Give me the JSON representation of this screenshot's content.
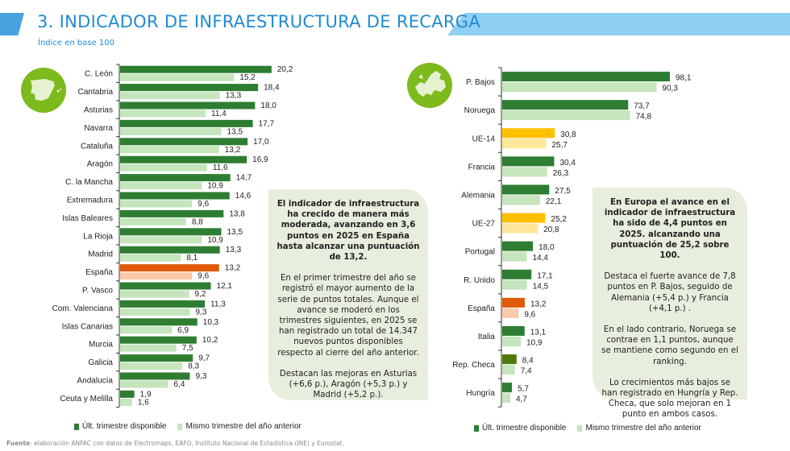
{
  "header": {
    "title": "3. INDICADOR DE INFRAESTRUCTURA DE RECARGA",
    "subtitle": "Índice en base 100"
  },
  "colors": {
    "current": "#2e7d32",
    "previous": "#c5e5bd",
    "spain_current": "#e05a0a",
    "spain_previous": "#fbc9aa",
    "eu_current": "#ffc000",
    "eu_previous": "#ffe699",
    "czech_current": "#4f7a0a",
    "box": "#e8eedd",
    "title": "#1f8bd3"
  },
  "chart_data": [
    {
      "type": "bar",
      "orientation": "horizontal",
      "icon": "spain-map-icon",
      "categories": [
        "C. León",
        "Cantabria",
        "Asturias",
        "Navarra",
        "Cataluña",
        "Aragón",
        "C. la Mancha",
        "Extremadura",
        "Islas Baleares",
        "La Rioja",
        "Madrid",
        "España",
        "P. Vasco",
        "Com. Valenciana",
        "Islas Canarias",
        "Murcia",
        "Galicia",
        "Andalucía",
        "Ceuta y Melilla"
      ],
      "series": [
        {
          "name": "Últ. trimestre disponible",
          "values": [
            20.2,
            18.4,
            18.0,
            17.7,
            17.0,
            16.9,
            14.7,
            14.6,
            13.8,
            13.5,
            13.3,
            13.2,
            12.1,
            11.3,
            10.3,
            10.2,
            9.7,
            9.3,
            1.9
          ],
          "labels": [
            "20,2",
            "18,4",
            "18,0",
            "17,7",
            "17,0",
            "16,9",
            "14,7",
            "14,6",
            "13,8",
            "13,5",
            "13,3",
            "13,2",
            "12,1",
            "11,3",
            "10,3",
            "10,2",
            "9,7",
            "9,3",
            "1,9"
          ]
        },
        {
          "name": "Mismo trimestre del año anterior",
          "values": [
            15.2,
            13.3,
            11.4,
            13.5,
            13.2,
            11.6,
            10.9,
            9.6,
            8.8,
            10.9,
            8.1,
            9.6,
            9.2,
            9.3,
            6.9,
            7.5,
            8.3,
            6.4,
            1.6
          ],
          "labels": [
            "15,2",
            "13,3",
            "11,4",
            "13,5",
            "13,2",
            "11,6",
            "10,9",
            "9,6",
            "8,8",
            "10,9",
            "8,1",
            "9,6",
            "9,2",
            "9,3",
            "6,9",
            "7,5",
            "8,3",
            "6,4",
            "1,6"
          ]
        }
      ],
      "highlight": {
        "España": "spain"
      },
      "xlim": [
        0,
        22
      ],
      "grid": false,
      "legend": "bottom"
    },
    {
      "type": "bar",
      "orientation": "horizontal",
      "icon": "europe-map-icon",
      "categories": [
        "P. Bajos",
        "Noruega",
        "UE-14",
        "Francia",
        "Alemania",
        "UE-27",
        "Portugal",
        "R. Unido",
        "España",
        "Italia",
        "Rep. Checa",
        "Hungría"
      ],
      "series": [
        {
          "name": "Últ. trimestre disponible",
          "values": [
            98.1,
            73.7,
            30.8,
            30.4,
            27.5,
            25.2,
            18.0,
            17.1,
            13.2,
            13.1,
            8.4,
            5.7
          ],
          "labels": [
            "98,1",
            "73,7",
            "30,8",
            "30,4",
            "27,5",
            "25,2",
            "18,0",
            "17,1",
            "13,2",
            "13,1",
            "8,4",
            "5,7"
          ]
        },
        {
          "name": "Mismo trimestre del año anterior",
          "values": [
            90.3,
            74.8,
            25.7,
            26.3,
            22.1,
            20.8,
            14.4,
            14.5,
            9.6,
            10.9,
            7.4,
            4.7
          ],
          "labels": [
            "90,3",
            "74,8",
            "25,7",
            "26,3",
            "22,1",
            "20,8",
            "14,4",
            "14,5",
            "9,6",
            "10,9",
            "7,4",
            "4,7"
          ]
        }
      ],
      "highlight": {
        "UE-14": "eu",
        "UE-27": "eu",
        "España": "spain",
        "Rep. Checa": "czech"
      },
      "xlim": [
        0,
        110
      ],
      "grid": false,
      "legend": "bottom"
    }
  ],
  "spain_box": {
    "bold": "El indicador de infraestructura ha crecido de manera más moderada, avanzando en 3,6 puntos en 2025 en España hasta alcanzar una puntuación de 13,2.",
    "p1": "En el primer trimestre del año se registró el mayor aumento de la serie de puntos totales. Aunque el avance se moderó en los trimestres siguientes, en 2025 se han registrado un total de 14.347 nuevos puntos disponibles respecto al cierre del año anterior.",
    "p2": "Destacan las mejoras en Asturias (+6,6 p.), Aragón (+5,3 p.) y Madrid (+5,2 p.)."
  },
  "europe_box": {
    "bold": "En Europa el avance en el indicador de infraestructura ha sido de 4,4 puntos en 2025. alcanzando una puntuación de 25,2 sobre 100.",
    "p1": "Destaca el fuerte avance de 7,8 puntos en P. Bajos, seguido de Alemania (+5,4 p.) y Francia (+4,1 p.) .",
    "p2": "En el lado contrario, Noruega se contrae en 1,1 puntos, aunque se mantiene como segundo en el ranking.",
    "p3": "Lo crecimientos más bajos se han registrado en Hungría y Rep. Checa, que solo mejoran en 1 punto en ambos casos."
  },
  "legend": {
    "current": "Últ. trimestre disponible",
    "previous": "Mismo trimestre del año anterior"
  },
  "footer": {
    "label": "Fuente",
    "text": ": elaboración ANFAC con datos de Electromaps, EAFO, Instituto Nacional de Estadística (INE) y Eurostat."
  }
}
